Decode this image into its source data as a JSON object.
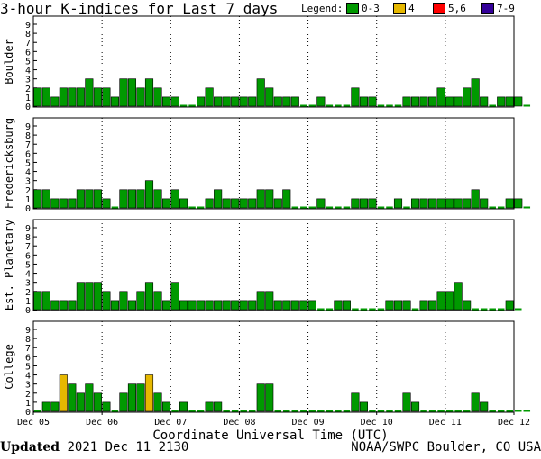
{
  "title": "3-hour K-indices for Last 7 days",
  "legend": {
    "label": "Legend:",
    "items": [
      {
        "label": "0-3",
        "color": "#009900"
      },
      {
        "label": "4",
        "color": "#e6b800"
      },
      {
        "label": "5,6",
        "color": "#ff0000"
      },
      {
        "label": "7-9",
        "color": "#330099"
      }
    ]
  },
  "footer": {
    "updated_label": "Updated",
    "updated_value": "2021 Dec 11 2130",
    "source": "NOAA/SWPC Boulder, CO USA"
  },
  "chart_data": {
    "type": "bar",
    "xlabel": "Coordinate Universal Time (UTC)",
    "x_ticks": [
      "Dec 05",
      "Dec 06",
      "Dec 07",
      "Dec 08",
      "Dec 09",
      "Dec 10",
      "Dec 11",
      "Dec 12"
    ],
    "y_ticks": [
      0,
      1,
      2,
      3,
      4,
      5,
      6,
      7,
      8,
      9
    ],
    "ylim": [
      0,
      9
    ],
    "panels": [
      {
        "name": "Boulder",
        "values": [
          2,
          2,
          1,
          2,
          2,
          2,
          3,
          2,
          2,
          1,
          3,
          3,
          2,
          3,
          2,
          1,
          1,
          0,
          0,
          1,
          2,
          1,
          1,
          1,
          1,
          1,
          3,
          2,
          1,
          1,
          1,
          0,
          0,
          1,
          0,
          0,
          0,
          2,
          1,
          1,
          0,
          0,
          0,
          1,
          1,
          1,
          1,
          2,
          1,
          1,
          2,
          3,
          1,
          0,
          1,
          1,
          1,
          0
        ]
      },
      {
        "name": "Fredericksburg",
        "values": [
          2,
          2,
          1,
          1,
          1,
          2,
          2,
          2,
          1,
          0,
          2,
          2,
          2,
          3,
          2,
          1,
          2,
          1,
          0,
          0,
          1,
          2,
          1,
          1,
          1,
          1,
          2,
          2,
          1,
          2,
          0,
          0,
          0,
          1,
          0,
          0,
          0,
          1,
          1,
          1,
          0,
          0,
          1,
          0,
          1,
          1,
          1,
          1,
          1,
          1,
          1,
          2,
          1,
          0,
          0,
          1,
          1,
          0
        ]
      },
      {
        "name": "Est. Planetary",
        "values": [
          2,
          2,
          1,
          1,
          1,
          3,
          3,
          3,
          2,
          1,
          2,
          1,
          2,
          3,
          2,
          1,
          3,
          1,
          1,
          1,
          1,
          1,
          1,
          1,
          1,
          1,
          2,
          2,
          1,
          1,
          1,
          1,
          1,
          0,
          0,
          1,
          1,
          0,
          0,
          0,
          0,
          1,
          1,
          1,
          0,
          1,
          1,
          2,
          2,
          3,
          1,
          0,
          0,
          0,
          0,
          1,
          0
        ]
      },
      {
        "name": "College",
        "values": [
          0,
          1,
          1,
          4,
          3,
          2,
          3,
          2,
          1,
          0,
          2,
          3,
          3,
          4,
          2,
          1,
          0,
          1,
          0,
          0,
          1,
          1,
          0,
          0,
          0,
          0,
          3,
          3,
          0,
          0,
          0,
          0,
          0,
          0,
          0,
          0,
          0,
          2,
          1,
          0,
          0,
          0,
          0,
          2,
          1,
          0,
          0,
          0,
          0,
          0,
          0,
          2,
          1,
          0,
          0,
          0,
          0,
          0
        ]
      }
    ]
  }
}
